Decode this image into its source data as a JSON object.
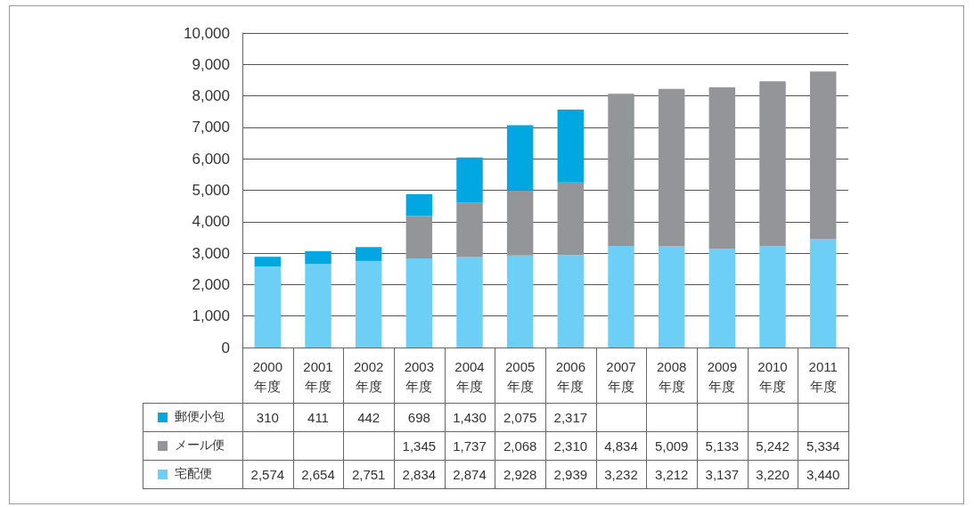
{
  "chart_data": {
    "type": "bar",
    "stacked": true,
    "categories": [
      "2000\n年度",
      "2001\n年度",
      "2002\n年度",
      "2003\n年度",
      "2004\n年度",
      "2005\n年度",
      "2006\n年度",
      "2007\n年度",
      "2008\n年度",
      "2009\n年度",
      "2010\n年度",
      "2011\n年度"
    ],
    "series": [
      {
        "name": "宅配便",
        "color": "#6dcff6",
        "values": [
          2574,
          2654,
          2751,
          2834,
          2874,
          2928,
          2939,
          3232,
          3212,
          3137,
          3220,
          3440
        ],
        "value_labels": [
          "2,574",
          "2,654",
          "2,751",
          "2,834",
          "2,874",
          "2,928",
          "2,939",
          "3,232",
          "3,212",
          "3,137",
          "3,220",
          "3,440"
        ]
      },
      {
        "name": "メール便",
        "color": "#939598",
        "values": [
          null,
          null,
          null,
          1345,
          1737,
          2068,
          2310,
          4834,
          5009,
          5133,
          5242,
          5334
        ],
        "value_labels": [
          null,
          null,
          null,
          "1,345",
          "1,737",
          "2,068",
          "2,310",
          "4,834",
          "5,009",
          "5,133",
          "5,242",
          "5,334"
        ]
      },
      {
        "name": "郵便小包",
        "color": "#00a7e1",
        "values": [
          310,
          411,
          442,
          698,
          1430,
          2075,
          2317,
          null,
          null,
          null,
          null,
          null
        ],
        "value_labels": [
          "310",
          "411",
          "442",
          "698",
          "1,430",
          "2,075",
          "2,317",
          null,
          null,
          null,
          null,
          null
        ]
      }
    ],
    "ylim": [
      0,
      10000
    ],
    "yticks": [
      0,
      {
        "value": 1000,
        "label": "1,000"
      },
      {
        "value": 2000,
        "label": "2,000"
      },
      {
        "value": 3000,
        "label": "3,000"
      },
      {
        "value": 4000,
        "label": "4,000"
      },
      {
        "value": 5000,
        "label": "5,000"
      },
      {
        "value": 6000,
        "label": "6,000"
      },
      {
        "value": 7000,
        "label": "7,000"
      },
      {
        "value": 8000,
        "label": "8,000"
      },
      {
        "value": 9000,
        "label": "9,000"
      },
      {
        "value": 10000,
        "label": "10,000"
      }
    ],
    "grid": "y",
    "legend": "bottom left"
  }
}
